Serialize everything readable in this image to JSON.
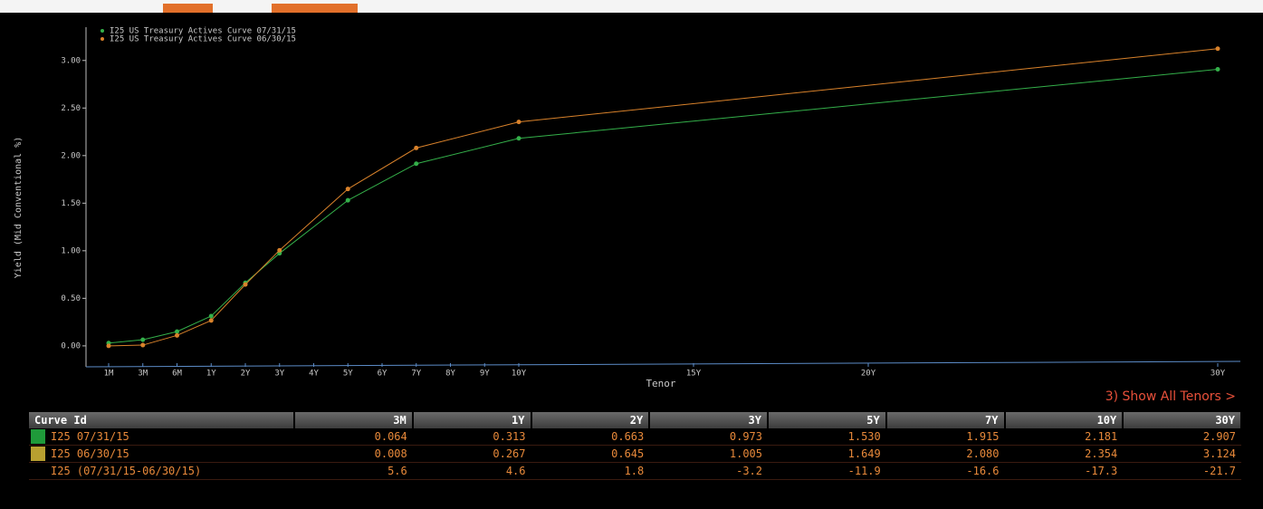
{
  "chart_data": {
    "type": "line",
    "x_label": "Tenor",
    "y_label": "Yield (Mid Conventional %)",
    "x": [
      0.0833,
      0.25,
      0.5,
      1,
      2,
      3,
      5,
      7,
      10,
      30
    ],
    "series": [
      {
        "name": "I25 US Treasury Actives Curve 07/31/15",
        "color": "#34b04a",
        "values": [
          0.03,
          0.064,
          0.15,
          0.313,
          0.663,
          0.973,
          1.53,
          1.915,
          2.181,
          2.907
        ]
      },
      {
        "name": "I25 US Treasury Actives Curve 06/30/15",
        "color": "#d9822b",
        "values": [
          0.0,
          0.008,
          0.11,
          0.267,
          0.645,
          1.005,
          1.649,
          2.08,
          2.354,
          3.124
        ]
      }
    ],
    "xticks": [
      {
        "value": 0.0833,
        "label": "1M"
      },
      {
        "value": 0.25,
        "label": "3M"
      },
      {
        "value": 0.5,
        "label": "6M"
      },
      {
        "value": 1,
        "label": "1Y"
      },
      {
        "value": 2,
        "label": "2Y"
      },
      {
        "value": 3,
        "label": "3Y"
      },
      {
        "value": 4,
        "label": "4Y"
      },
      {
        "value": 5,
        "label": "5Y"
      },
      {
        "value": 6,
        "label": "6Y"
      },
      {
        "value": 7,
        "label": "7Y"
      },
      {
        "value": 8,
        "label": "8Y"
      },
      {
        "value": 9,
        "label": "9Y"
      },
      {
        "value": 10,
        "label": "10Y"
      },
      {
        "value": 15,
        "label": "15Y"
      },
      {
        "value": 20,
        "label": "20Y"
      },
      {
        "value": 30,
        "label": "30Y"
      }
    ],
    "ylim": [
      -0.22,
      3.35
    ],
    "yticks": [
      {
        "value": 0,
        "label": "0.00"
      },
      {
        "value": 0.5,
        "label": "0.50"
      },
      {
        "value": 1,
        "label": "1.00"
      },
      {
        "value": 1.5,
        "label": "1.50"
      },
      {
        "value": 2,
        "label": "2.00"
      },
      {
        "value": 2.5,
        "label": "2.50"
      },
      {
        "value": 3,
        "label": "3.00"
      }
    ],
    "legend": "top-left"
  },
  "link": "3) Show All Tenors >",
  "table": {
    "header": [
      "Curve Id",
      "3M",
      "1Y",
      "2Y",
      "3Y",
      "5Y",
      "7Y",
      "10Y",
      "30Y"
    ],
    "rows": [
      [
        "I25 07/31/15",
        "0.064",
        "0.313",
        "0.663",
        "0.973",
        "1.530",
        "1.915",
        "2.181",
        "2.907"
      ],
      [
        "I25 06/30/15",
        "0.008",
        "0.267",
        "0.645",
        "1.005",
        "1.649",
        "2.080",
        "2.354",
        "3.124"
      ],
      [
        "I25 (07/31/15-06/30/15)",
        "5.6",
        "4.6",
        "1.8",
        "-3.2",
        "-11.9",
        "-16.6",
        "-17.3",
        "-21.7"
      ]
    ]
  }
}
